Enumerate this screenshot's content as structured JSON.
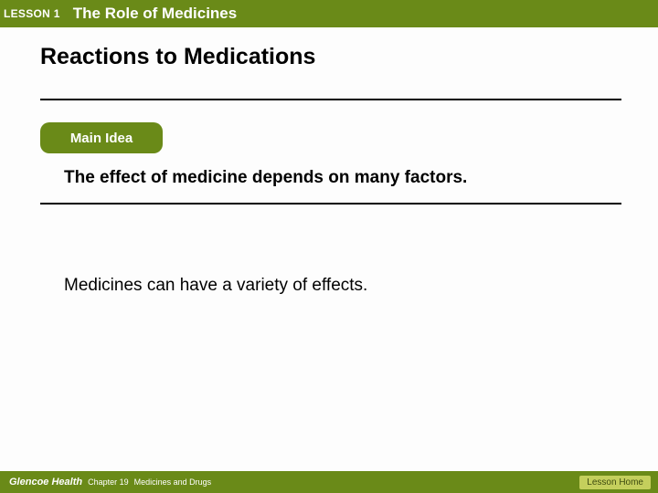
{
  "header": {
    "lesson_label": "LESSON 1",
    "lesson_title": "The Role of Medicines"
  },
  "section_title": "Reactions to Medications",
  "main_idea": {
    "badge_label": "Main Idea",
    "text": "The effect of medicine depends on many factors."
  },
  "body_text": "Medicines can have a variety of effects.",
  "footer": {
    "brand": "Glencoe Health",
    "chapter": "Chapter 19",
    "topic": "Medicines and Drugs",
    "lesson_home": "Lesson Home"
  },
  "colors": {
    "bar_green": "#6a8a18",
    "button_green": "#c4cf5c",
    "button_text": "#3d4a0f",
    "text_black": "#000000",
    "background": "#fdfdfd"
  }
}
